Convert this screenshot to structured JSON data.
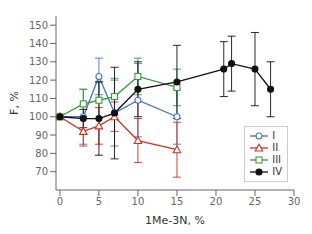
{
  "chart_data": {
    "type": "line",
    "xlabel": "1Me-3N, %",
    "ylabel": "F, %",
    "xlim": [
      -0.5,
      30
    ],
    "ylim": [
      60,
      155
    ],
    "xticks": [
      0,
      5,
      10,
      15,
      20,
      25,
      30
    ],
    "yticks": [
      70,
      80,
      90,
      100,
      110,
      120,
      130,
      140,
      150
    ],
    "grid": false,
    "legend": "lower right",
    "series": [
      {
        "name": "I",
        "color": "#4472c4",
        "marker": "circle-open",
        "x": [
          0,
          3,
          5,
          7,
          10,
          15
        ],
        "values": [
          100,
          100,
          122,
          102,
          109,
          100
        ],
        "yerr": [
          0,
          15,
          10,
          18,
          20,
          15
        ]
      },
      {
        "name": "II",
        "color": "#d03020",
        "marker": "triangle-open",
        "x": [
          0,
          3,
          5,
          7,
          10,
          15
        ],
        "values": [
          100,
          92,
          95,
          100,
          87,
          82
        ],
        "yerr": [
          0,
          8,
          10,
          8,
          12,
          15
        ]
      },
      {
        "name": "III",
        "color": "#3a9a3a",
        "marker": "square-open",
        "x": [
          0,
          3,
          5,
          7,
          10,
          15
        ],
        "values": [
          100,
          107,
          109,
          111,
          122,
          116
        ],
        "yerr": [
          0,
          8,
          10,
          10,
          10,
          10
        ]
      },
      {
        "name": "IV",
        "color": "#111111",
        "marker": "circle",
        "x": [
          0,
          3,
          5,
          7,
          10,
          15,
          21,
          22,
          25,
          27
        ],
        "values": [
          100,
          99,
          99,
          102,
          115,
          119,
          126,
          129,
          126,
          115
        ],
        "yerr": [
          0,
          5,
          20,
          25,
          15,
          20,
          15,
          15,
          20,
          15
        ]
      }
    ]
  }
}
